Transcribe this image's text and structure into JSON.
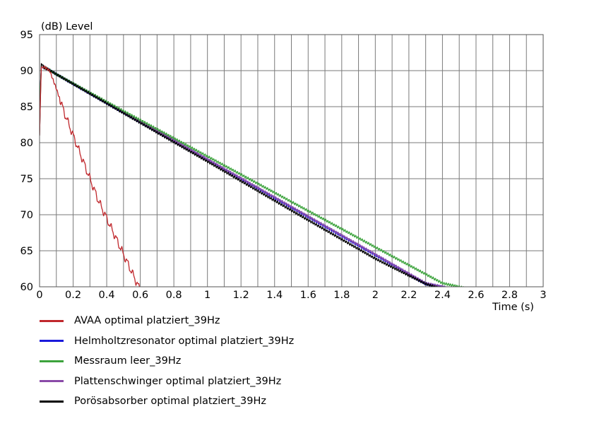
{
  "chart_data": {
    "type": "line",
    "ylabel": "(dB)  Level",
    "xlabel": "Time  (s)",
    "xlim": [
      0,
      3
    ],
    "ylim": [
      60,
      95
    ],
    "xticks": [
      0,
      0.2,
      0.4,
      0.6,
      0.8,
      1,
      1.2,
      1.4,
      1.6,
      1.8,
      2,
      2.2,
      2.4,
      2.6,
      2.8,
      3
    ],
    "xtick_labels": [
      "0",
      "0.2",
      "0.4",
      "0.6",
      "0.8",
      "1",
      "1.2",
      "1.4",
      "1.6",
      "1.8",
      "2",
      "2.2",
      "2.4",
      "2.6",
      "2.8",
      "3"
    ],
    "yticks": [
      60,
      65,
      70,
      75,
      80,
      85,
      90,
      95
    ],
    "ytick_labels": [
      "60",
      "65",
      "70",
      "75",
      "80",
      "85",
      "90",
      "95"
    ],
    "grid": true,
    "legend_position": "bottom-left",
    "series": [
      {
        "name": "AVAA optimal platziert_39Hz",
        "color": "#c0282d",
        "x": [
          0,
          0.01,
          0.03,
          0.06,
          0.1,
          0.15,
          0.2,
          0.25,
          0.3,
          0.35,
          0.4,
          0.45,
          0.5,
          0.55,
          0.58,
          0.6
        ],
        "y": [
          81,
          90.5,
          90.5,
          90,
          87.5,
          84,
          81,
          78,
          75,
          72,
          69.5,
          67,
          64.5,
          62,
          60.5,
          59.5
        ]
      },
      {
        "name": "Helmholtzresonator optimal platziert_39Hz",
        "color": "#1a1adb",
        "x": [
          0,
          0.01,
          0.03,
          0.05,
          0.1,
          0.5,
          1.0,
          1.5,
          2.0,
          2.3,
          2.5
        ],
        "y": [
          85,
          90.5,
          90.5,
          90.2,
          89.5,
          84.2,
          77.6,
          71.0,
          64.4,
          60.4,
          59.5
        ]
      },
      {
        "name": "Messraum leer_39Hz",
        "color": "#3ca33c",
        "x": [
          0,
          0.01,
          0.03,
          0.05,
          0.1,
          0.5,
          1.0,
          1.5,
          2.0,
          2.4,
          2.6
        ],
        "y": [
          85,
          90.5,
          90.5,
          90.2,
          89.5,
          84.4,
          78.1,
          71.8,
          65.5,
          60.5,
          59.5
        ]
      },
      {
        "name": "Plattenschwinger optimal platziert_39Hz",
        "color": "#8a4aa8",
        "x": [
          0,
          0.01,
          0.03,
          0.05,
          0.1,
          0.5,
          1.0,
          1.5,
          2.0,
          2.3,
          2.5
        ],
        "y": [
          85,
          90.5,
          90.5,
          90.2,
          89.5,
          84.3,
          77.7,
          71.1,
          64.5,
          60.5,
          59.5
        ]
      },
      {
        "name": "Porösabsorber optimal platziert_39Hz",
        "color": "#000000",
        "x": [
          0,
          0.01,
          0.03,
          0.05,
          0.1,
          0.5,
          1.0,
          1.5,
          2.0,
          2.3,
          2.4,
          2.5
        ],
        "y": [
          81,
          91,
          90.3,
          90.2,
          89.5,
          84.1,
          77.4,
          70.6,
          63.9,
          60.4,
          59.7,
          59.5
        ]
      }
    ]
  }
}
